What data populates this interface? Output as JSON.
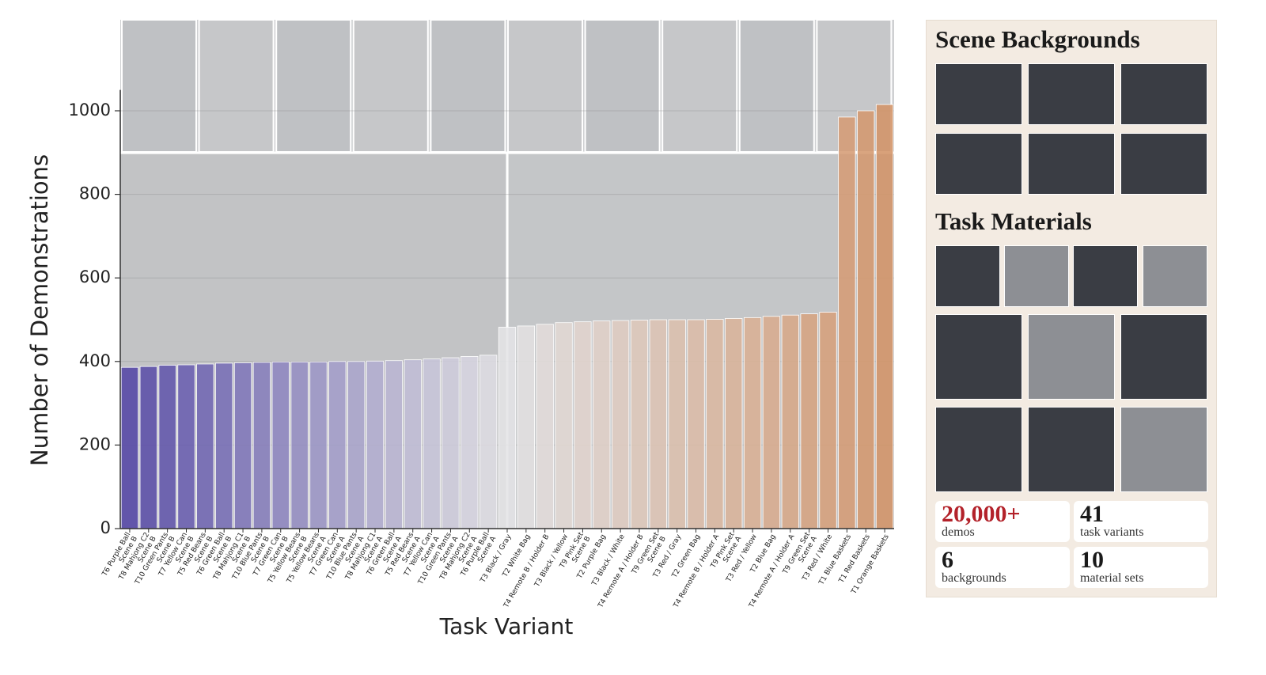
{
  "chart_data": {
    "type": "bar",
    "y_label": "Number of Demonstrations",
    "x_label": "Task Variant",
    "categories": [
      [
        "T6 Purple Ball",
        "Scene B"
      ],
      [
        "T8 Mahjong C2",
        "Scene B"
      ],
      [
        "T10 Green Pants",
        "Scene B"
      ],
      [
        "T7 Yellow Can",
        "Scene B"
      ],
      [
        "T5 Red Beans",
        "Scene B"
      ],
      [
        "T6 Green Ball",
        "Scene B"
      ],
      [
        "T8 Mahjong C1",
        "Scene B"
      ],
      [
        "T10 Blue Pants",
        "Scene B"
      ],
      [
        "T7 Green Can",
        "Scene B"
      ],
      [
        "T5 Yellow Beans",
        "Scene B"
      ],
      [
        "T5 Yellow Beans",
        "Scene A"
      ],
      [
        "T7 Green Can",
        "Scene A"
      ],
      [
        "T10 Blue Pants",
        "Scene A"
      ],
      [
        "T8 Mahjong C1",
        "Scene A"
      ],
      [
        "T6 Green Ball",
        "Scene A"
      ],
      [
        "T5 Red Beans",
        "Scene A"
      ],
      [
        "T7 Yellow Can",
        "Scene A"
      ],
      [
        "T10 Green Pants",
        "Scene A"
      ],
      [
        "T8 Mahjong C2",
        "Scene A"
      ],
      [
        "T6 Purple Ball",
        "Scene A"
      ],
      [
        "T3 Black / Gray"
      ],
      [
        "T2 White Bag"
      ],
      [
        "T4 Remote B / Holder B"
      ],
      [
        "T3 Black / Yellow"
      ],
      [
        "T9 Pink Set",
        "Scene B"
      ],
      [
        "T2 Purple Bag"
      ],
      [
        "T3 Black / White"
      ],
      [
        "T4 Remote A / Holder B"
      ],
      [
        "T9 Green Set",
        "Scene B"
      ],
      [
        "T3 Red / Gray"
      ],
      [
        "T2 Green Bag"
      ],
      [
        "T4 Remote B / Holder A"
      ],
      [
        "T9 Pink Set",
        "Scene A"
      ],
      [
        "T3 Red / Yellow"
      ],
      [
        "T2 Blue Bag"
      ],
      [
        "T4 Remote A / Holder A"
      ],
      [
        "T9 Green Set",
        "Scene A"
      ],
      [
        "T3 Red / White"
      ],
      [
        "T1 Blue Baskets"
      ],
      [
        "T1 Red Baskets"
      ],
      [
        "T1 Orange Baskets"
      ]
    ],
    "values": [
      386,
      388,
      391,
      392,
      394,
      396,
      397,
      398,
      399,
      399,
      399,
      400,
      400,
      401,
      402,
      404,
      406,
      409,
      412,
      415,
      482,
      485,
      489,
      493,
      495,
      497,
      498,
      499,
      500,
      500,
      500,
      501,
      503,
      505,
      508,
      511,
      514,
      518,
      985,
      1000,
      1015
    ],
    "colormap": [
      "#5447a6",
      "#e4e4e6",
      "#d39468"
    ],
    "ylim": [
      0,
      1050
    ],
    "yticks": [
      0,
      200,
      400,
      600,
      800,
      1000
    ],
    "grid": true
  },
  "side_panel": {
    "sections": [
      {
        "title": "Scene Backgrounds"
      },
      {
        "title": "Task Materials"
      }
    ],
    "stats": [
      {
        "value": "20,000+",
        "label": "demos"
      },
      {
        "value": 41,
        "label": "task variants"
      },
      {
        "value": 6,
        "label": "backgrounds"
      },
      {
        "value": 10,
        "label": "material sets"
      }
    ]
  }
}
